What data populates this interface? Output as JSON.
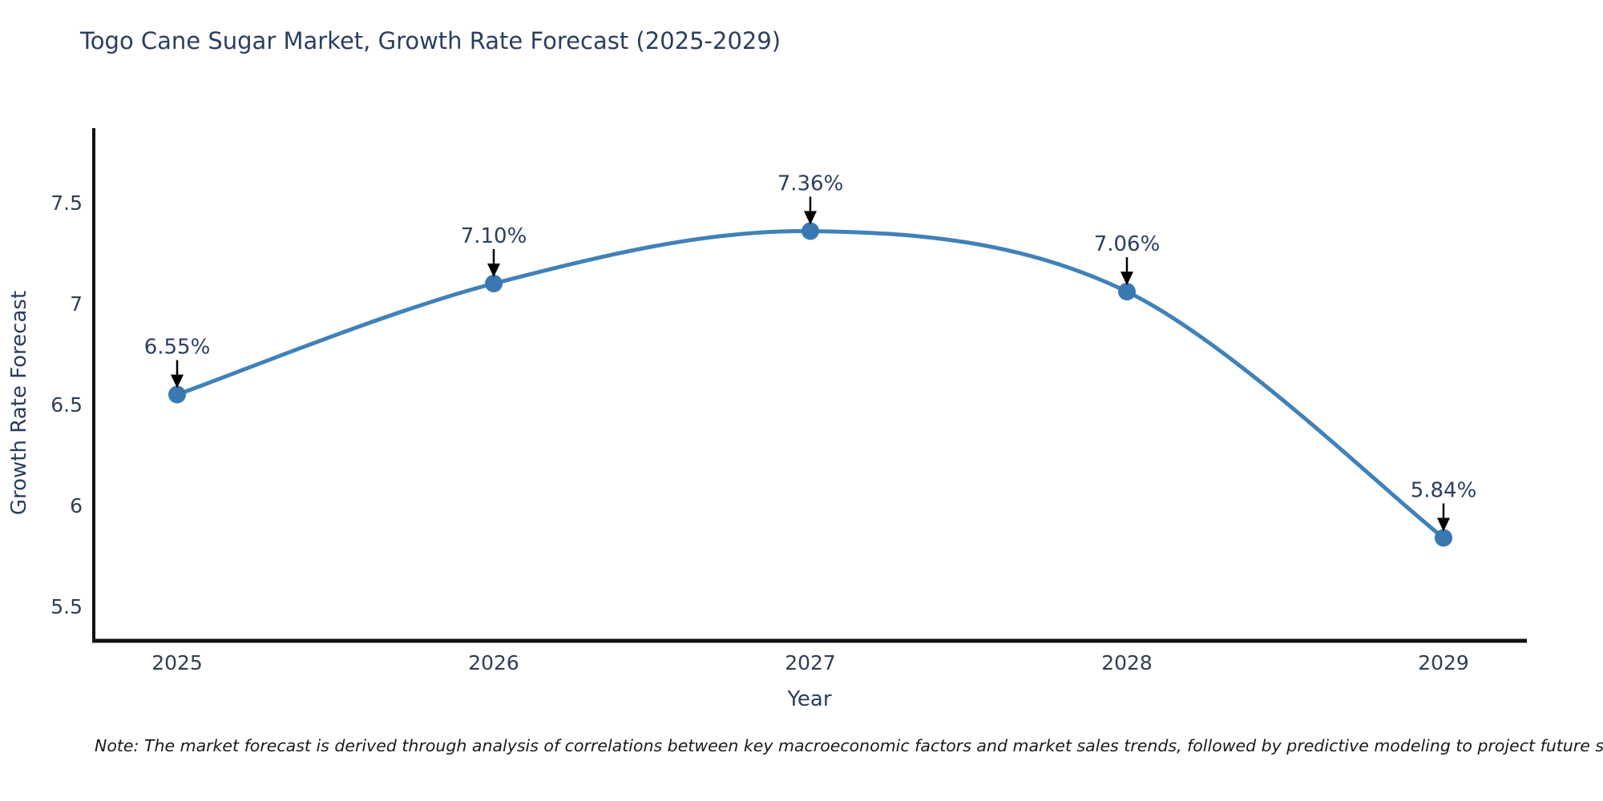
{
  "header": {
    "title": "Togo Cane Sugar Market, Growth Rate Forecast (2025-2029)"
  },
  "note": "Note: The market forecast is derived through analysis of correlations between key macroeconomic factors and market sales trends, followed by predictive modeling to project future sales",
  "chart_data": {
    "type": "line",
    "title": "Togo Cane Sugar Market, Growth Rate Forecast (2025-2029)",
    "xlabel": "Year",
    "ylabel": "Growth Rate Forecast",
    "categories": [
      "2025",
      "2026",
      "2027",
      "2028",
      "2029"
    ],
    "values": [
      6.55,
      7.1,
      7.36,
      7.06,
      5.84
    ],
    "point_labels": [
      "6.55%",
      "7.10%",
      "7.36%",
      "7.06%",
      "5.84%"
    ],
    "yticks": [
      "5.5",
      "6",
      "6.5",
      "7",
      "7.5"
    ],
    "ytick_values": [
      5.5,
      6,
      6.5,
      7,
      7.5
    ],
    "ylim": [
      5.33,
      7.87
    ],
    "grid": false,
    "legend": "none",
    "line_shape": "spline",
    "annotation_style": "arrow-down",
    "colors": {
      "line": "#4181b8",
      "marker": "#3a78b2",
      "arrow": "#000000",
      "text": "#2a3f5f",
      "tick": "#2f3f53",
      "axis": "#111111",
      "background": "#ffffff"
    }
  }
}
